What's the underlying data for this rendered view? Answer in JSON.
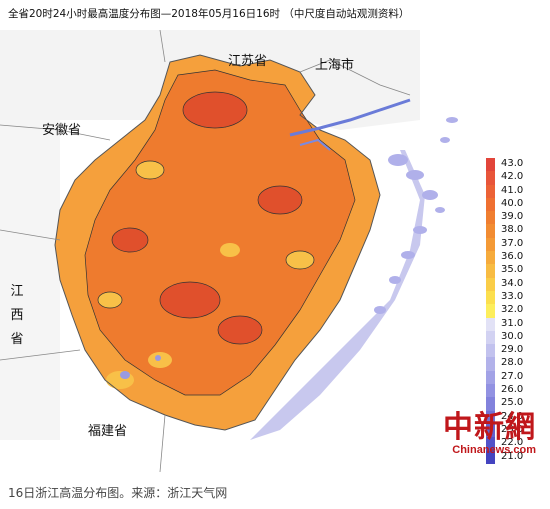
{
  "map": {
    "title": "全省20时24小时最高温度分布图—2018年05月16日16时 （中尺度自动站观测资料）",
    "regions": {
      "jiangsu": "江苏省",
      "shanghai": "上海市",
      "anhui": "安徽省",
      "jiangxi": "江西省",
      "fujian": "福建省"
    },
    "colors": {
      "hot_core": "#e0502c",
      "hot": "#ee7b2e",
      "warm": "#f5a03c",
      "mild": "#f8c048",
      "cool": "#f6e04e",
      "coast": "#b8b8ec",
      "sea": "#ffffff"
    }
  },
  "legend": {
    "items": [
      {
        "label": "43.0",
        "color": "#e2453a"
      },
      {
        "label": "42.0",
        "color": "#e8553a"
      },
      {
        "label": "41.0",
        "color": "#ec6236"
      },
      {
        "label": "40.0",
        "color": "#ef7031"
      },
      {
        "label": "39.0",
        "color": "#f07e30"
      },
      {
        "label": "38.0",
        "color": "#f28c32"
      },
      {
        "label": "37.0",
        "color": "#f49a36"
      },
      {
        "label": "36.0",
        "color": "#f6ab3c"
      },
      {
        "label": "35.0",
        "color": "#f8bc43"
      },
      {
        "label": "34.0",
        "color": "#facd48"
      },
      {
        "label": "33.0",
        "color": "#fcdf4e"
      },
      {
        "label": "32.0",
        "color": "#fdee5c"
      },
      {
        "label": "31.0",
        "color": "#e2e2f6"
      },
      {
        "label": "30.0",
        "color": "#d2d2f2"
      },
      {
        "label": "29.0",
        "color": "#c2c2ee"
      },
      {
        "label": "28.0",
        "color": "#b2b2ea"
      },
      {
        "label": "27.0",
        "color": "#a2a2e6"
      },
      {
        "label": "26.0",
        "color": "#9292e2"
      },
      {
        "label": "25.0",
        "color": "#8282dc"
      },
      {
        "label": "24.0",
        "color": "#7272d6"
      },
      {
        "label": "23.0",
        "color": "#6262d0"
      },
      {
        "label": "22.0",
        "color": "#5252c8"
      },
      {
        "label": "21.0",
        "color": "#4444c0"
      }
    ]
  },
  "watermark": {
    "cn": "中新網",
    "en": "Chinanews.com"
  },
  "caption": "16日浙江高温分布图。来源：浙江天气网"
}
